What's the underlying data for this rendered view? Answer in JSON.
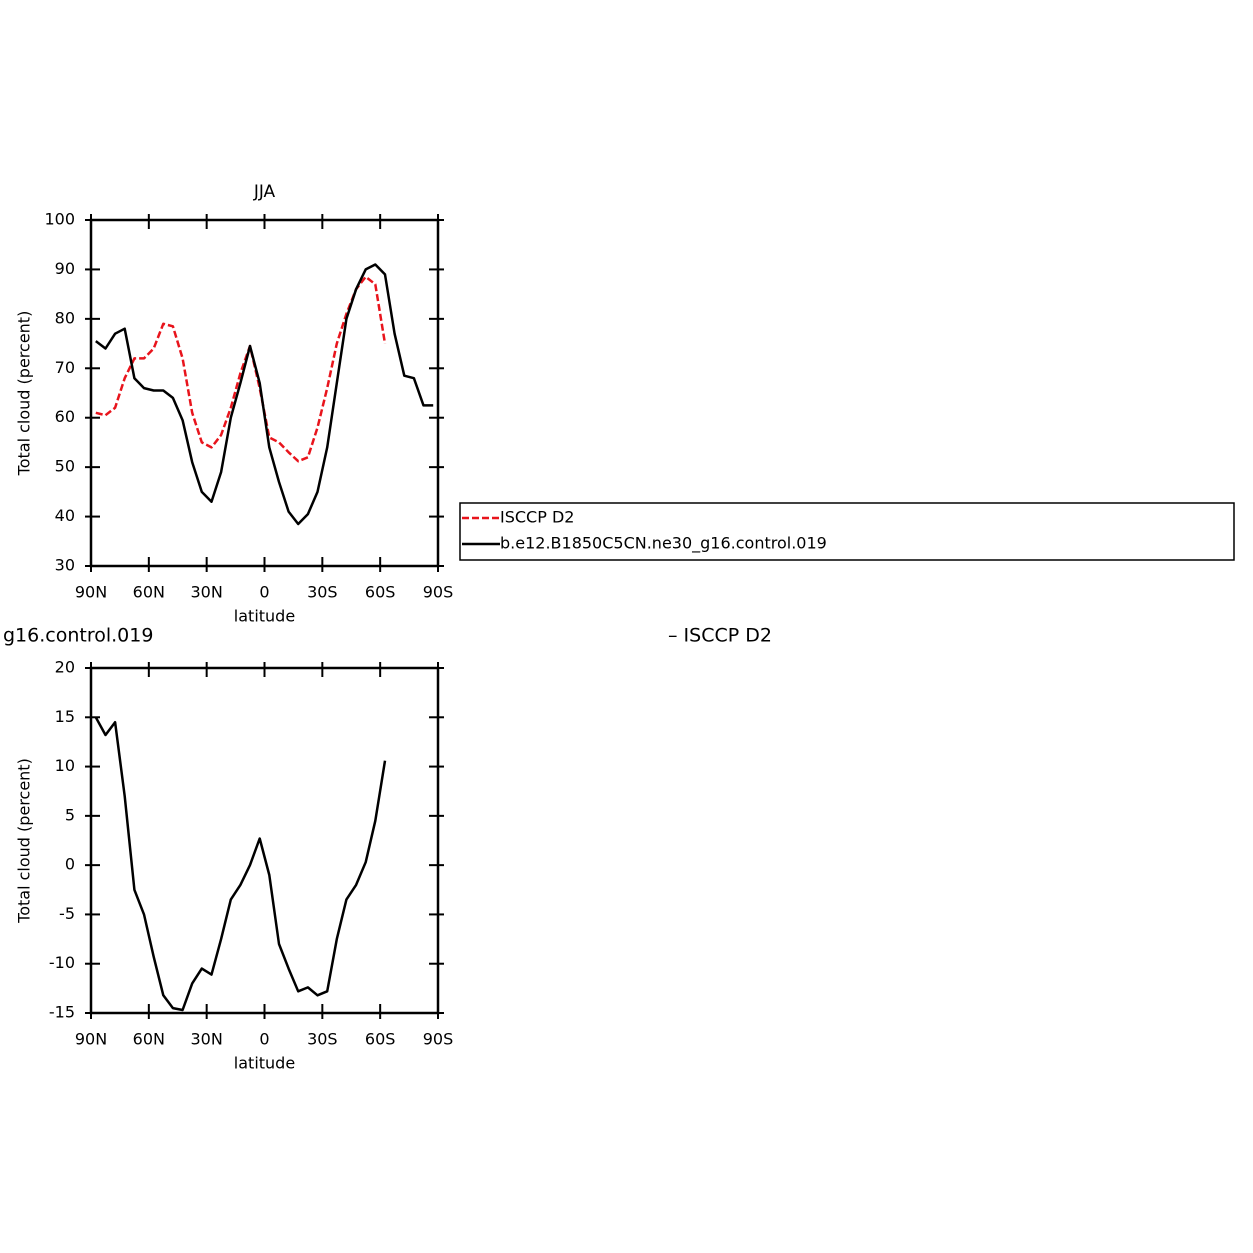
{
  "chart_data": [
    {
      "type": "line",
      "title": "JJA",
      "xlabel": "latitude",
      "ylabel": "Total cloud (percent)",
      "x": [
        87.5,
        82.5,
        77.5,
        72.5,
        67.5,
        62.5,
        57.5,
        52.5,
        47.5,
        42.5,
        37.5,
        32.5,
        27.5,
        22.5,
        17.5,
        12.5,
        7.5,
        2.5,
        -2.5,
        -7.5,
        -12.5,
        -17.5,
        -22.5,
        -27.5,
        -32.5,
        -37.5,
        -42.5,
        -47.5,
        -52.5,
        -57.5,
        -62.5,
        -67.5,
        -72.5,
        -77.5,
        -82.5,
        -87.5
      ],
      "series": [
        {
          "name": "ISCCP D2",
          "color": "#e8141c",
          "dashed": true,
          "values": [
            61,
            60.5,
            62,
            68,
            72,
            72,
            74,
            79,
            78.5,
            72,
            61,
            55,
            54,
            56.5,
            62,
            69,
            74.5,
            66,
            56,
            55,
            53,
            51.2,
            52,
            58,
            66,
            75,
            81,
            86,
            88.5,
            87,
            75,
            null,
            null,
            null,
            null,
            null
          ]
        },
        {
          "name": "b.e12.B1850C5CN.ne30_g16.control.019",
          "color": "#000000",
          "dashed": false,
          "values": [
            75.5,
            74,
            77,
            78,
            68,
            66,
            65.5,
            65.5,
            64,
            59.5,
            51,
            45,
            43,
            49,
            60,
            67,
            74.5,
            67,
            54,
            47,
            41,
            38.5,
            40.5,
            45,
            54,
            67,
            80,
            86,
            90,
            91,
            89,
            77,
            68.5,
            68,
            62.5,
            62.5
          ]
        }
      ],
      "xlim": [
        90,
        -90
      ],
      "xticks": [
        {
          "value": 90,
          "label": "90N"
        },
        {
          "value": 60,
          "label": "60N"
        },
        {
          "value": 30,
          "label": "30N"
        },
        0,
        {
          "value": -30,
          "label": "30S"
        },
        {
          "value": -60,
          "label": "60S"
        },
        {
          "value": -90,
          "label": "90S"
        }
      ],
      "ylim": [
        30,
        100
      ],
      "yticks": [
        30,
        40,
        50,
        60,
        70,
        80,
        90,
        100
      ],
      "legend": "right"
    },
    {
      "type": "line",
      "title": [
        "g16.control.019",
        "– ISCCP D2"
      ],
      "xlabel": "latitude",
      "ylabel": "Total cloud (percent)",
      "x": [
        87.5,
        82.5,
        77.5,
        72.5,
        67.5,
        62.5,
        57.5,
        52.5,
        47.5,
        42.5,
        37.5,
        32.5,
        27.5,
        22.5,
        17.5,
        12.5,
        7.5,
        2.5,
        -2.5,
        -7.5,
        -12.5,
        -17.5,
        -22.5,
        -27.5,
        -32.5,
        -37.5,
        -42.5,
        -47.5,
        -52.5,
        -57.5,
        -62.5
      ],
      "values": [
        15,
        13.2,
        14.5,
        7,
        -2.5,
        -5,
        -9.3,
        -13.2,
        -14.5,
        -14.7,
        -12,
        -10.5,
        -11.1,
        -7.5,
        -3.5,
        -2,
        0,
        2.7,
        -1,
        -8,
        -10.5,
        -12.8,
        -12.4,
        -13.2,
        -12.8,
        -7.5,
        -3.5,
        -2,
        0.3,
        4.5,
        10.6
      ],
      "color": "#000000",
      "xlim": [
        90,
        -90
      ],
      "xticks": [
        {
          "value": 90,
          "label": "90N"
        },
        {
          "value": 60,
          "label": "60N"
        },
        {
          "value": 30,
          "label": "30N"
        },
        0,
        {
          "value": -30,
          "label": "30S"
        },
        {
          "value": -60,
          "label": "60S"
        },
        {
          "value": -90,
          "label": "90S"
        }
      ],
      "ylim": [
        -15,
        20
      ],
      "yticks": [
        -15,
        -10,
        -5,
        0,
        5,
        10,
        15,
        20
      ]
    }
  ]
}
